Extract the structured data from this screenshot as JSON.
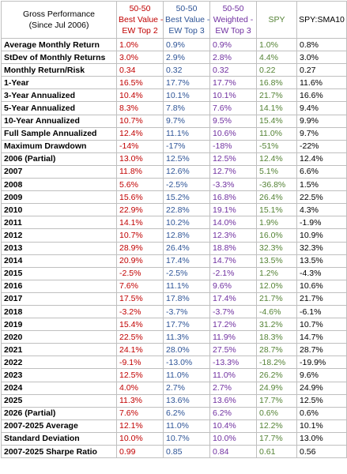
{
  "header": {
    "label": [
      "Gross Performance",
      "(Since Jul 2006)"
    ],
    "bv2": [
      "50-50",
      "Best Value -",
      "EW Top 2"
    ],
    "bv3": [
      "50-50",
      "Best Value -",
      "EW Top 3"
    ],
    "wt3": [
      "50-50",
      "Weighted -",
      "EW Top 3"
    ],
    "spy": "SPY",
    "sma": "SPY:SMA10"
  },
  "colors": {
    "bv2": "#c00000",
    "bv3": "#2f5597",
    "wt3": "#7030a0",
    "spy": "#548235",
    "sma": "#000000"
  },
  "rows": [
    {
      "label": "Average Monthly Return",
      "bv2": "1.0%",
      "bv3": "0.9%",
      "wt3": "0.9%",
      "spy": "1.0%",
      "sma": "0.8%"
    },
    {
      "label": "StDev of Monthly Returns",
      "bv2": "3.0%",
      "bv3": "2.9%",
      "wt3": "2.8%",
      "spy": "4.4%",
      "sma": "3.0%"
    },
    {
      "label": "Monthly Return/Risk",
      "bv2": "0.34",
      "bv3": "0.32",
      "wt3": "0.32",
      "spy": "0.22",
      "sma": "0.27"
    },
    {
      "label": "1-Year",
      "bv2": "16.5%",
      "bv3": "17.7%",
      "wt3": "17.7%",
      "spy": "16.8%",
      "sma": "11.6%"
    },
    {
      "label": "3-Year Annualized",
      "bv2": "10.4%",
      "bv3": "10.1%",
      "wt3": "10.1%",
      "spy": "21.7%",
      "sma": "16.6%"
    },
    {
      "label": "5-Year Annualized",
      "bv2": "8.3%",
      "bv3": "7.8%",
      "wt3": "7.6%",
      "spy": "14.1%",
      "sma": "9.4%"
    },
    {
      "label": "10-Year Annualized",
      "bv2": "10.7%",
      "bv3": "9.7%",
      "wt3": "9.5%",
      "spy": "15.4%",
      "sma": "9.9%"
    },
    {
      "label": "Full Sample Annualized",
      "bv2": "12.4%",
      "bv3": "11.1%",
      "wt3": "10.6%",
      "spy": "11.0%",
      "sma": "9.7%"
    },
    {
      "label": "Maximum Drawdown",
      "bv2": "-14%",
      "bv3": "-17%",
      "wt3": "-18%",
      "spy": "-51%",
      "sma": "-22%"
    },
    {
      "label": "2006 (Partial)",
      "bv2": "13.0%",
      "bv3": "12.5%",
      "wt3": "12.5%",
      "spy": "12.4%",
      "sma": "12.4%"
    },
    {
      "label": "2007",
      "bv2": "11.8%",
      "bv3": "12.6%",
      "wt3": "12.7%",
      "spy": "5.1%",
      "sma": "6.6%"
    },
    {
      "label": "2008",
      "bv2": "5.6%",
      "bv3": "-2.5%",
      "wt3": "-3.3%",
      "spy": "-36.8%",
      "sma": "1.5%"
    },
    {
      "label": "2009",
      "bv2": "15.6%",
      "bv3": "15.2%",
      "wt3": "16.8%",
      "spy": "26.4%",
      "sma": "22.5%"
    },
    {
      "label": "2010",
      "bv2": "22.9%",
      "bv3": "22.8%",
      "wt3": "19.1%",
      "spy": "15.1%",
      "sma": "4.3%"
    },
    {
      "label": "2011",
      "bv2": "14.1%",
      "bv3": "10.2%",
      "wt3": "14.0%",
      "spy": "1.9%",
      "sma": "-1.9%"
    },
    {
      "label": "2012",
      "bv2": "10.7%",
      "bv3": "12.8%",
      "wt3": "12.3%",
      "spy": "16.0%",
      "sma": "10.9%"
    },
    {
      "label": "2013",
      "bv2": "28.9%",
      "bv3": "26.4%",
      "wt3": "18.8%",
      "spy": "32.3%",
      "sma": "32.3%"
    },
    {
      "label": "2014",
      "bv2": "20.9%",
      "bv3": "17.4%",
      "wt3": "14.7%",
      "spy": "13.5%",
      "sma": "13.5%"
    },
    {
      "label": "2015",
      "bv2": "-2.5%",
      "bv3": "-2.5%",
      "wt3": "-2.1%",
      "spy": "1.2%",
      "sma": "-4.3%"
    },
    {
      "label": "2016",
      "bv2": "7.6%",
      "bv3": "11.1%",
      "wt3": "9.6%",
      "spy": "12.0%",
      "sma": "10.6%"
    },
    {
      "label": "2017",
      "bv2": "17.5%",
      "bv3": "17.8%",
      "wt3": "17.4%",
      "spy": "21.7%",
      "sma": "21.7%"
    },
    {
      "label": "2018",
      "bv2": "-3.2%",
      "bv3": "-3.7%",
      "wt3": "-3.7%",
      "spy": "-4.6%",
      "sma": "-6.1%"
    },
    {
      "label": "2019",
      "bv2": "15.4%",
      "bv3": "17.7%",
      "wt3": "17.2%",
      "spy": "31.2%",
      "sma": "10.7%"
    },
    {
      "label": "2020",
      "bv2": "22.5%",
      "bv3": "11.3%",
      "wt3": "11.9%",
      "spy": "18.3%",
      "sma": "14.7%"
    },
    {
      "label": "2021",
      "bv2": "24.1%",
      "bv3": "28.0%",
      "wt3": "27.5%",
      "spy": "28.7%",
      "sma": "28.7%"
    },
    {
      "label": "2022",
      "bv2": "-9.1%",
      "bv3": "-13.0%",
      "wt3": "-13.3%",
      "spy": "-18.2%",
      "sma": "-19.9%"
    },
    {
      "label": "2023",
      "bv2": "12.5%",
      "bv3": "11.0%",
      "wt3": "11.0%",
      "spy": "26.2%",
      "sma": "9.6%"
    },
    {
      "label": "2024",
      "bv2": "4.0%",
      "bv3": "2.7%",
      "wt3": "2.7%",
      "spy": "24.9%",
      "sma": "24.9%"
    },
    {
      "label": "2025",
      "bv2": "11.3%",
      "bv3": "13.6%",
      "wt3": "13.6%",
      "spy": "17.7%",
      "sma": "12.5%"
    },
    {
      "label": "2026 (Partial)",
      "bv2": "7.6%",
      "bv3": "6.2%",
      "wt3": "6.2%",
      "spy": "0.6%",
      "sma": "0.6%"
    },
    {
      "label": "2007-2025 Average",
      "bv2": "12.1%",
      "bv3": "11.0%",
      "wt3": "10.4%",
      "spy": "12.2%",
      "sma": "10.1%"
    },
    {
      "label": "Standard Deviation",
      "bv2": "10.0%",
      "bv3": "10.7%",
      "wt3": "10.0%",
      "spy": "17.7%",
      "sma": "13.0%"
    },
    {
      "label": "2007-2025 Sharpe Ratio",
      "bv2": "0.99",
      "bv3": "0.85",
      "wt3": "0.84",
      "spy": "0.61",
      "sma": "0.56"
    }
  ]
}
